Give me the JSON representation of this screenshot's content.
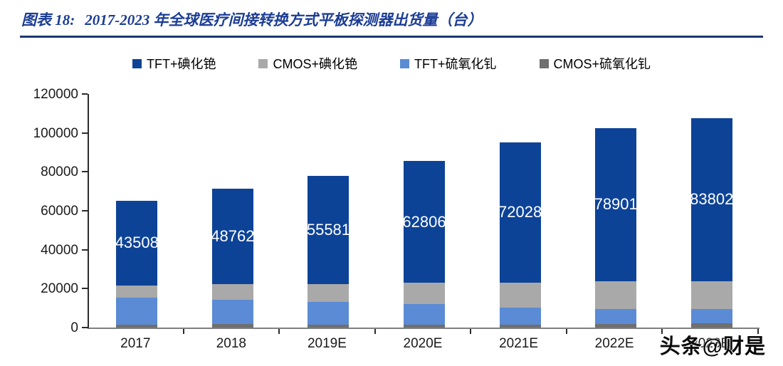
{
  "header": {
    "figure_label": "图表 18:",
    "title": "2017-2023 年全球医疗间接转换方式平板探测器出货量（台）"
  },
  "watermark": "头条@财是",
  "colors": {
    "title_blue": "#1c3d94",
    "divider_navy": "#1a366e",
    "axis_dark": "#2b2b2b",
    "x_axis_gray": "#7f7f7f",
    "bar_label_white": "#ffffff"
  },
  "chart_data": {
    "type": "bar",
    "stacked": true,
    "title": "2017-2023 年全球医疗间接转换方式平板探测器出货量（台）",
    "xlabel": "",
    "ylabel": "",
    "categories": [
      "2017",
      "2018",
      "2019E",
      "2020E",
      "2021E",
      "2022E",
      "2023E"
    ],
    "series": [
      {
        "name": "TFT+碘化铯",
        "color": "#0d4397",
        "show_value_labels": true,
        "values": [
          43508,
          48762,
          55581,
          62806,
          72028,
          78901,
          83802
        ]
      },
      {
        "name": "CMOS+碘化铯",
        "color": "#a9a9a9",
        "show_value_labels": false,
        "values": [
          6200,
          8200,
          9400,
          10900,
          13100,
          14300,
          14400
        ]
      },
      {
        "name": "TFT+硫氧化钆",
        "color": "#5b8bd5",
        "show_value_labels": false,
        "values": [
          14000,
          12500,
          11600,
          10500,
          8600,
          7500,
          7200
        ]
      },
      {
        "name": "CMOS+硫氧化钆",
        "color": "#6f6f6f",
        "show_value_labels": false,
        "values": [
          1500,
          1800,
          1500,
          1500,
          1500,
          1900,
          2200
        ]
      }
    ],
    "stack_order_bottom_to_top": [
      "CMOS+硫氧化钆",
      "TFT+硫氧化钆",
      "CMOS+碘化铯",
      "TFT+碘化铯"
    ],
    "y_ticks": [
      0,
      20000,
      40000,
      60000,
      80000,
      100000,
      120000
    ],
    "ylim": [
      0,
      120000
    ],
    "legend_position": "top",
    "grid": false
  }
}
